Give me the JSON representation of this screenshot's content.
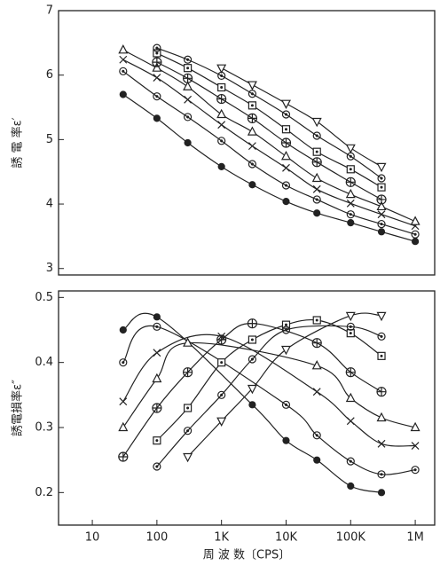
{
  "chart_data": [
    {
      "type": "line",
      "ylabel": "誘 電 率ε′",
      "log_x": true,
      "xlim": [
        3,
        2000000
      ],
      "ylim": [
        2.9,
        7
      ],
      "yticks": [
        3,
        4,
        5,
        6,
        7
      ],
      "color": "#222222",
      "series": [
        {
          "marker": "filled-circle",
          "x": [
            30,
            100,
            300,
            1000,
            3000,
            10000,
            30000,
            100000,
            300000,
            1000000
          ],
          "values": [
            5.7,
            5.33,
            4.95,
            4.58,
            4.3,
            4.04,
            3.86,
            3.71,
            3.57,
            3.42
          ]
        },
        {
          "marker": "dot-circle",
          "x": [
            30,
            100,
            300,
            1000,
            3000,
            10000,
            30000,
            100000,
            300000,
            1000000
          ],
          "values": [
            6.06,
            5.67,
            5.35,
            4.98,
            4.62,
            4.29,
            4.07,
            3.84,
            3.69,
            3.53
          ]
        },
        {
          "marker": "cross",
          "x": [
            30,
            100,
            300,
            1000,
            3000,
            10000,
            30000,
            100000,
            300000,
            1000000
          ],
          "values": [
            6.24,
            5.96,
            5.62,
            5.23,
            4.9,
            4.56,
            4.23,
            4.01,
            3.84,
            3.66
          ]
        },
        {
          "marker": "triangle",
          "x": [
            30,
            100,
            300,
            1000,
            3000,
            10000,
            30000,
            100000,
            300000,
            1000000
          ],
          "values": [
            6.39,
            6.11,
            5.82,
            5.39,
            5.12,
            4.74,
            4.4,
            4.15,
            3.96,
            3.73
          ]
        },
        {
          "marker": "plus-circle",
          "x": [
            100,
            300,
            1000,
            3000,
            10000,
            30000,
            100000,
            300000
          ],
          "values": [
            6.2,
            5.95,
            5.63,
            5.33,
            4.95,
            4.65,
            4.34,
            4.07
          ]
        },
        {
          "marker": "square",
          "x": [
            100,
            300,
            1000,
            3000,
            10000,
            30000,
            100000,
            300000
          ],
          "values": [
            6.34,
            6.11,
            5.81,
            5.53,
            5.16,
            4.81,
            4.54,
            4.26
          ]
        },
        {
          "marker": "dot-circle",
          "x": [
            100,
            300,
            1000,
            3000,
            10000,
            30000,
            100000,
            300000
          ],
          "values": [
            6.42,
            6.24,
            5.99,
            5.71,
            5.39,
            5.06,
            4.74,
            4.4
          ]
        },
        {
          "marker": "down-triangle",
          "x": [
            1000,
            3000,
            10000,
            30000,
            100000,
            300000
          ],
          "values": [
            6.11,
            5.85,
            5.56,
            5.28,
            4.87,
            4.58
          ]
        }
      ]
    },
    {
      "type": "line",
      "ylabel": "誘電損率ε″",
      "xlabel": "周 波 数〔CPS〕",
      "log_x": true,
      "xlim": [
        3,
        2000000
      ],
      "ylim": [
        0.15,
        0.51
      ],
      "yticks": [
        0.2,
        0.3,
        0.4,
        0.5
      ],
      "color": "#222222",
      "xticks": [
        10,
        100,
        {
          "value": 1000,
          "label": "1K"
        },
        {
          "value": 10000,
          "label": "10K"
        },
        {
          "value": 100000,
          "label": "100K"
        },
        {
          "value": 1000000,
          "label": "1M"
        }
      ],
      "series": [
        {
          "marker": "filled-circle",
          "x": [
            30,
            100,
            3000,
            10000,
            30000,
            100000,
            300000
          ],
          "values": [
            0.45,
            0.47,
            0.335,
            0.28,
            0.25,
            0.21,
            0.2
          ]
        },
        {
          "marker": "dot-circle",
          "x": [
            30,
            100,
            10000,
            30000,
            100000,
            300000,
            1000000
          ],
          "values": [
            0.4,
            0.455,
            0.335,
            0.288,
            0.248,
            0.228,
            0.235
          ]
        },
        {
          "marker": "cross",
          "x": [
            30,
            100,
            1000,
            30000,
            100000,
            300000,
            1000000
          ],
          "values": [
            0.34,
            0.415,
            0.44,
            0.355,
            0.31,
            0.275,
            0.272
          ]
        },
        {
          "marker": "triangle",
          "x": [
            30,
            100,
            300,
            30000,
            100000,
            300000,
            1000000
          ],
          "values": [
            0.3,
            0.375,
            0.43,
            0.395,
            0.345,
            0.315,
            0.3
          ]
        },
        {
          "marker": "plus-circle",
          "x": [
            30,
            100,
            300,
            1000,
            3000,
            30000,
            100000,
            300000
          ],
          "values": [
            0.255,
            0.33,
            0.385,
            0.435,
            0.46,
            0.43,
            0.385,
            0.355
          ]
        },
        {
          "marker": "square",
          "x": [
            100,
            300,
            1000,
            3000,
            10000,
            30000,
            100000,
            300000
          ],
          "values": [
            0.28,
            0.33,
            0.4,
            0.435,
            0.458,
            0.465,
            0.445,
            0.41
          ]
        },
        {
          "marker": "dot-circle",
          "x": [
            100,
            300,
            1000,
            3000,
            10000,
            100000,
            300000
          ],
          "values": [
            0.24,
            0.295,
            0.35,
            0.405,
            0.45,
            0.455,
            0.44
          ]
        },
        {
          "marker": "down-triangle",
          "x": [
            300,
            1000,
            3000,
            10000,
            100000,
            300000
          ],
          "values": [
            0.255,
            0.31,
            0.36,
            0.42,
            0.472,
            0.472
          ]
        }
      ]
    }
  ]
}
